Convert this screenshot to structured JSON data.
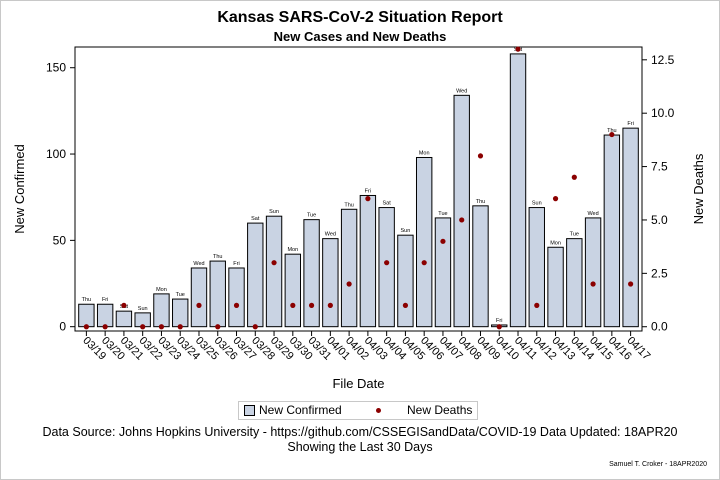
{
  "header": {
    "title": "Kansas SARS-CoV-2 Situation Report",
    "subtitle": "New Cases and New Deaths"
  },
  "legend": {
    "bars_label": "New Confirmed",
    "dots_label": "New Deaths"
  },
  "footer": {
    "line1": "Data Source: Johns Hopkins University - https://github.com/CSSEGISandData/COVID-19 Data Updated: 18APR20",
    "line2": "Showing the Last 30 Days",
    "credit": "Samuel T. Croker - 18APR2020"
  },
  "colors": {
    "bar_fill": "#c9d3e3",
    "bar_stroke": "#000000",
    "death_dot": "#8b0000"
  },
  "chart_data": {
    "type": "bar",
    "title": "Kansas SARS-CoV-2 Situation Report",
    "subtitle": "New Cases and New Deaths",
    "xlabel": "File Date",
    "ylabel": "New Confirmed",
    "y2label": "New Deaths",
    "ylim": [
      -2.5,
      162
    ],
    "y_ticks": [
      0,
      50,
      100,
      150
    ],
    "y2lim": [
      -0.2,
      13.1
    ],
    "y2_ticks": [
      "0.0",
      "2.5",
      "5.0",
      "7.5",
      "10.0",
      "12.5"
    ],
    "grid": false,
    "legend_position": "bottom",
    "categories": [
      "03/19",
      "03/20",
      "03/21",
      "03/22",
      "03/23",
      "03/24",
      "03/25",
      "03/26",
      "03/27",
      "03/28",
      "03/29",
      "03/30",
      "03/31",
      "04/01",
      "04/02",
      "04/03",
      "04/04",
      "04/05",
      "04/06",
      "04/07",
      "04/08",
      "04/09",
      "04/10",
      "04/11",
      "04/12",
      "04/13",
      "04/14",
      "04/15",
      "04/16",
      "04/17"
    ],
    "weekday_labels": [
      "Thu",
      "Fri",
      "Sat",
      "Sun",
      "Mon",
      "Tue",
      "Wed",
      "Thu",
      "Fri",
      "Sat",
      "Sun",
      "Mon",
      "Tue",
      "Wed",
      "Thu",
      "Fri",
      "Sat",
      "Sun",
      "Mon",
      "Tue",
      "Wed",
      "Thu",
      "Fri",
      "Sat",
      "Sun",
      "Mon",
      "Tue",
      "Wed",
      "Thu",
      "Fri"
    ],
    "series": [
      {
        "name": "New Confirmed",
        "type": "bar",
        "values": [
          13,
          13,
          9,
          8,
          19,
          16,
          34,
          38,
          34,
          60,
          64,
          42,
          62,
          51,
          68,
          76,
          69,
          53,
          98,
          63,
          134,
          70,
          1,
          158,
          69,
          46,
          51,
          63,
          111,
          115
        ]
      },
      {
        "name": "New Deaths",
        "type": "scatter",
        "axis": "right",
        "values": [
          0,
          0,
          1,
          0,
          0,
          0,
          1,
          0,
          1,
          0,
          3,
          1,
          1,
          1,
          2,
          6,
          3,
          1,
          3,
          4,
          5,
          8,
          0,
          13,
          1,
          6,
          7,
          2,
          9,
          2
        ]
      }
    ]
  }
}
